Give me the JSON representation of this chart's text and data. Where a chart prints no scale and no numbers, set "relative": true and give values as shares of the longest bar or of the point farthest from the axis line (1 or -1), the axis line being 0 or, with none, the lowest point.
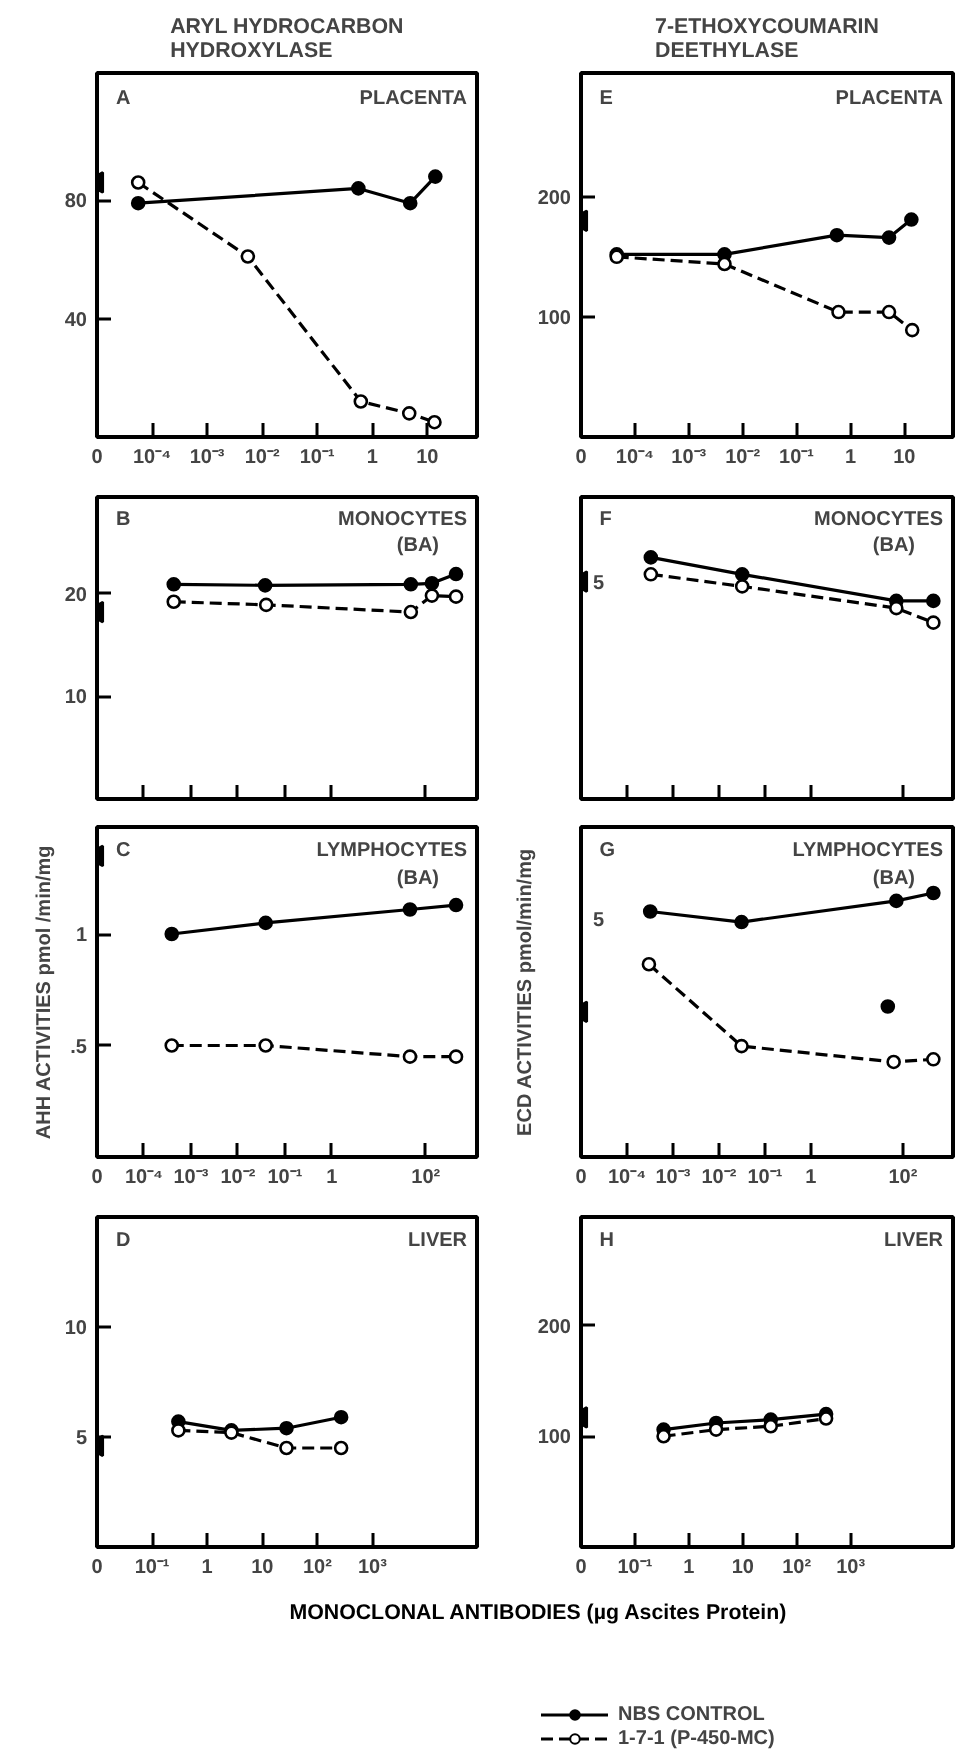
{
  "chart_data": [
    {
      "type": "line",
      "log": "x",
      "title": "ARYL HYDROCARBON\nHYDROXYLASE",
      "annotations": [
        "A",
        "PLACENTA"
      ],
      "xlim": [
        1e-05,
        80
      ],
      "ylim": [
        0,
        123
      ],
      "xticks": [
        {
          "value": 1e-05,
          "label": "0"
        },
        {
          "value": 0.0001,
          "label": "10⁻⁴"
        },
        {
          "value": 0.001,
          "label": "10⁻³"
        },
        {
          "value": 0.01,
          "label": "10⁻²"
        },
        {
          "value": 0.1,
          "label": "10⁻¹"
        },
        1,
        10
      ],
      "yticks": [
        40,
        80
      ],
      "series": [
        {
          "color": "#000000",
          "line_style": "solid",
          "marker": "circle",
          "x": [
            5.6e-05,
            0.56,
            4.9,
            14
          ],
          "values": [
            79,
            84,
            79,
            88
          ]
        },
        {
          "color": "#000000",
          "line_style": "dashed",
          "marker": "circle",
          "x": [
            5.6e-05,
            0.0055,
            0.62,
            4.7,
            13.5
          ],
          "values": [
            86,
            61,
            12,
            8,
            5
          ]
        },
        {
          "type": "scatter",
          "color": "#000000",
          "marker": "triangle",
          "x": [
            1e-05
          ],
          "values": [
            86
          ]
        }
      ]
    },
    {
      "type": "line",
      "log": "x",
      "title": "7-ETHOXYCOUMARIN\nDEETHYLASE",
      "annotations": [
        "E",
        "PLACENTA"
      ],
      "xlim": [
        1e-05,
        80
      ],
      "ylim": [
        0,
        303
      ],
      "xticks": [
        {
          "value": 1e-05,
          "label": "0"
        },
        {
          "value": 0.0001,
          "label": "10⁻⁴"
        },
        {
          "value": 0.001,
          "label": "10⁻³"
        },
        {
          "value": 0.01,
          "label": "10⁻²"
        },
        {
          "value": 0.1,
          "label": "10⁻¹"
        },
        1,
        10
      ],
      "yticks": [
        100,
        200
      ],
      "series": [
        {
          "color": "#000000",
          "line_style": "solid",
          "marker": "circle",
          "x": [
            4.6e-05,
            0.0046,
            0.56,
            5.2,
            13.5
          ],
          "values": [
            152,
            152,
            168,
            166,
            181
          ]
        },
        {
          "color": "#000000",
          "line_style": "dashed",
          "marker": "circle",
          "x": [
            4.6e-05,
            0.0046,
            0.6,
            5.2,
            14
          ],
          "values": [
            150,
            144,
            104,
            104,
            89
          ]
        },
        {
          "type": "scatter",
          "color": "#000000",
          "marker": "triangle",
          "x": [
            1e-05
          ],
          "values": [
            180
          ]
        }
      ]
    },
    {
      "type": "line",
      "log": "x",
      "annotations": [
        "B",
        "MONOCYTES",
        "(BA)"
      ],
      "xlim": [
        1e-05,
        1230
      ],
      "ylim": [
        0,
        29.4
      ],
      "tick_labels": "y",
      "xticks": [
        {
          "value": 0.0001,
          "label": null
        },
        {
          "value": 0.001,
          "label": null
        },
        {
          "value": 0.01,
          "label": null
        },
        {
          "value": 0.1,
          "label": null
        },
        {
          "value": 1,
          "label": null
        },
        {
          "value": 100,
          "label": null
        }
      ],
      "yticks": [
        10,
        20
      ],
      "series": [
        {
          "color": "#000000",
          "line_style": "solid",
          "marker": "circle",
          "x": [
            0.00043,
            0.038,
            48,
            135,
            440
          ],
          "values": [
            20.9,
            20.8,
            20.9,
            21,
            21.9
          ]
        },
        {
          "color": "#000000",
          "line_style": "dashed",
          "marker": "circle",
          "x": [
            0.00043,
            0.04,
            48,
            135,
            440
          ],
          "values": [
            19.2,
            18.9,
            18.2,
            19.8,
            19.7
          ]
        },
        {
          "type": "scatter",
          "color": "#000000",
          "marker": "triangle",
          "x": [
            1e-05
          ],
          "values": [
            18.2
          ]
        }
      ]
    },
    {
      "type": "line",
      "log": "x",
      "relative": true,
      "annotations": [
        "5",
        "F",
        "MONOCYTES",
        "(BA)"
      ],
      "xlim": [
        1e-05,
        1230
      ],
      "tick_labels": "y",
      "xticks": [
        {
          "value": 0.0001,
          "label": null
        },
        {
          "value": 0.001,
          "label": null
        },
        {
          "value": 0.01,
          "label": null
        },
        {
          "value": 0.1,
          "label": null
        },
        {
          "value": 1,
          "label": null
        },
        {
          "value": 100,
          "label": null
        }
      ],
      "series": [
        {
          "color": "#000000",
          "line_style": "solid",
          "marker": "circle",
          "x": [
            0.00033,
            0.032,
            72,
            460
          ],
          "values": [
            1.0,
            0.93,
            0.82,
            0.82
          ]
        },
        {
          "color": "#000000",
          "line_style": "dashed",
          "marker": "circle",
          "x": [
            0.00033,
            0.032,
            72,
            460
          ],
          "values": [
            0.93,
            0.88,
            0.79,
            0.73
          ]
        },
        {
          "type": "scatter",
          "color": "#000000",
          "marker": "triangle",
          "x": [
            1e-05
          ],
          "values": [
            0.9
          ]
        }
      ]
    },
    {
      "type": "line",
      "log": "x",
      "annotations": [
        "C",
        "LYMPHOCYTES",
        "(BA)"
      ],
      "ylabel": "AHH ACTIVITIES pmol /min/mg",
      "xlim": [
        1e-05,
        1230
      ],
      "ylim": [
        0,
        1.48
      ],
      "xticks": [
        {
          "value": 1e-05,
          "label": "0"
        },
        {
          "value": 0.0001,
          "label": "10⁻⁴"
        },
        {
          "value": 0.001,
          "label": "10⁻³"
        },
        {
          "value": 0.01,
          "label": "10⁻²"
        },
        {
          "value": 0.1,
          "label": "10⁻¹"
        },
        1,
        {
          "value": 100,
          "label": "10²"
        }
      ],
      "yticks": [
        {
          "value": 0.5,
          "label": ".5"
        },
        1
      ],
      "series": [
        {
          "color": "#000000",
          "line_style": "solid",
          "marker": "circle",
          "x": [
            0.00039,
            0.039,
            46,
            440
          ],
          "values": [
            1.0,
            1.05,
            1.11,
            1.13
          ]
        },
        {
          "color": "#000000",
          "line_style": "dashed",
          "marker": "circle",
          "x": [
            0.00039,
            0.039,
            46,
            440
          ],
          "values": [
            0.5,
            0.5,
            0.45,
            0.45
          ]
        },
        {
          "type": "scatter",
          "color": "#000000",
          "marker": "triangle",
          "x": [
            1e-05
          ],
          "values": [
            1.35
          ]
        }
      ]
    },
    {
      "type": "line",
      "log": "x",
      "relative": true,
      "annotations": [
        "5",
        "G",
        "LYMPHOCYTES",
        "(BA)"
      ],
      "ylabel": "ECD ACTIVITIES pmol/min/mg",
      "xlim": [
        1e-05,
        1230
      ],
      "xticks": [
        {
          "value": 1e-05,
          "label": "0"
        },
        {
          "value": 0.0001,
          "label": "10⁻⁴"
        },
        {
          "value": 0.001,
          "label": "10⁻³"
        },
        {
          "value": 0.01,
          "label": "10⁻²"
        },
        {
          "value": 0.1,
          "label": "10⁻¹"
        },
        1,
        {
          "value": 100,
          "label": "10²"
        }
      ],
      "series": [
        {
          "color": "#000000",
          "line_style": "solid",
          "marker": "circle",
          "x": [
            0.00032,
            0.031,
            72,
            460
          ],
          "values": [
            0.93,
            0.89,
            0.97,
            1.0
          ]
        },
        {
          "color": "#000000",
          "line_style": "dashed",
          "marker": "circle",
          "x": [
            0.0003,
            0.031,
            63,
            460
          ],
          "values": [
            0.73,
            0.42,
            0.36,
            0.37
          ]
        },
        {
          "type": "scatter",
          "color": "#000000",
          "marker": "circle",
          "x": [
            47
          ],
          "values": [
            0.57
          ]
        },
        {
          "type": "scatter",
          "color": "#000000",
          "marker": "triangle",
          "x": [
            1e-05
          ],
          "values": [
            0.55
          ]
        }
      ]
    },
    {
      "type": "line",
      "log": "x",
      "annotations": [
        "D",
        "LIVER"
      ],
      "xlabel": "MONOCLONAL ANTIBODIES (µg Ascites Protein)",
      "xlim": [
        0.01,
        79000
      ],
      "ylim": [
        0,
        15
      ],
      "xticks": [
        {
          "value": 0.01,
          "label": "0"
        },
        {
          "value": 0.1,
          "label": "10⁻¹"
        },
        1,
        10,
        {
          "value": 100,
          "label": "10²"
        },
        {
          "value": 1000,
          "label": "10³"
        }
      ],
      "yticks": [
        5,
        10
      ],
      "series": [
        {
          "color": "#000000",
          "line_style": "solid",
          "marker": "circle",
          "x": [
            0.3,
            2.75,
            27.5,
            270
          ],
          "values": [
            5.7,
            5.3,
            5.4,
            5.9
          ]
        },
        {
          "color": "#000000",
          "line_style": "dashed",
          "marker": "circle",
          "x": [
            0.3,
            2.75,
            27.5,
            270
          ],
          "values": [
            5.3,
            5.2,
            4.5,
            4.5
          ]
        },
        {
          "type": "scatter",
          "color": "#000000",
          "marker": "triangle",
          "x": [
            0.01
          ],
          "values": [
            4.6
          ]
        }
      ]
    },
    {
      "type": "line",
      "log": "x",
      "annotations": [
        "H",
        "LIVER"
      ],
      "legend": "bottom",
      "xlim": [
        0.01,
        79000
      ],
      "ylim": [
        0,
        298
      ],
      "xticks": [
        {
          "value": 0.01,
          "label": "0"
        },
        {
          "value": 0.1,
          "label": "10⁻¹"
        },
        1,
        10,
        {
          "value": 100,
          "label": "10²"
        },
        {
          "value": 1000,
          "label": "10³"
        }
      ],
      "yticks": [
        100,
        200
      ],
      "series": [
        {
          "name": "NBS CONTROL",
          "color": "#000000",
          "line_style": "solid",
          "marker": "circle",
          "x": [
            0.34,
            3.2,
            33,
            350
          ],
          "values": [
            106,
            112,
            115,
            120
          ]
        },
        {
          "name": "1-7-1 (P-450-MC)",
          "color": "#000000",
          "line_style": "dashed",
          "marker": "circle",
          "x": [
            0.34,
            3.2,
            33,
            350
          ],
          "values": [
            100,
            106,
            109,
            116
          ]
        },
        {
          "type": "scatter",
          "color": "#000000",
          "marker": "triangle",
          "x": [
            0.01
          ],
          "values": [
            117
          ]
        }
      ]
    }
  ]
}
